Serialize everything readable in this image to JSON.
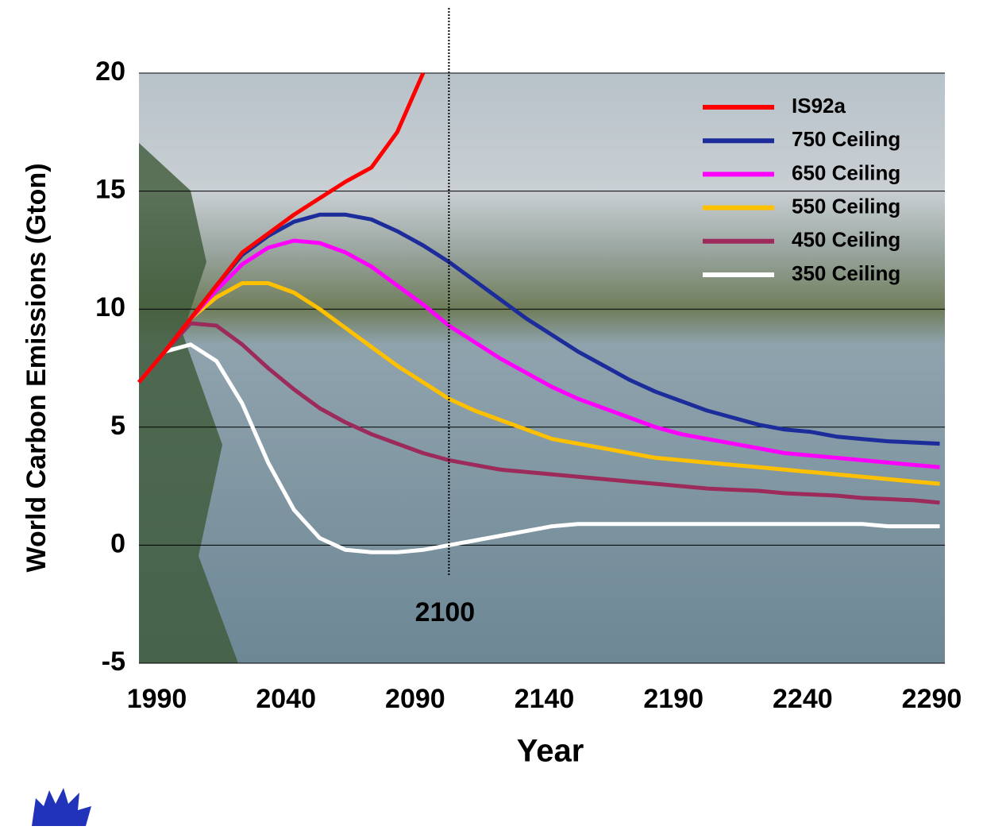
{
  "chart_data": {
    "type": "line",
    "y_label": "World Carbon Emissions (Gton)",
    "x_label": "Year",
    "vline": 2100,
    "xlim": [
      1980,
      2292
    ],
    "ylim": [
      -5,
      20
    ],
    "xticks": [
      1990,
      2040,
      2090,
      2140,
      2190,
      2240,
      2290
    ],
    "yticks": [
      -5,
      0,
      5,
      10,
      15,
      20
    ],
    "grid": true,
    "legend": "upper right",
    "x": [
      1980,
      1990,
      2000,
      2010,
      2020,
      2030,
      2040,
      2050,
      2060,
      2070,
      2080,
      2090,
      2100,
      2110,
      2120,
      2130,
      2140,
      2150,
      2160,
      2170,
      2180,
      2190,
      2200,
      2210,
      2220,
      2230,
      2240,
      2250,
      2260,
      2270,
      2280,
      2290
    ],
    "series": [
      {
        "name": "IS92a",
        "color": "#ff0000",
        "values": [
          6.9,
          8.2,
          9.6,
          11.0,
          12.4,
          13.2,
          14.0,
          14.7,
          15.4,
          16.0,
          17.5,
          20.0,
          null,
          null,
          null,
          null,
          null,
          null,
          null,
          null,
          null,
          null,
          null,
          null,
          null,
          null,
          null,
          null,
          null,
          null,
          null,
          null
        ]
      },
      {
        "name": "750 Ceiling",
        "color": "#1c2c9a",
        "values": [
          6.9,
          8.2,
          9.6,
          11.0,
          12.3,
          13.1,
          13.7,
          14.0,
          14.0,
          13.8,
          13.3,
          12.7,
          12.0,
          11.2,
          10.4,
          9.6,
          8.9,
          8.2,
          7.6,
          7.0,
          6.5,
          6.1,
          5.7,
          5.4,
          5.1,
          4.9,
          4.8,
          4.6,
          4.5,
          4.4,
          4.35,
          4.3
        ]
      },
      {
        "name": "650 Ceiling",
        "color": "#ff00ff",
        "values": [
          6.9,
          8.2,
          9.6,
          10.8,
          11.9,
          12.6,
          12.9,
          12.8,
          12.4,
          11.8,
          11.0,
          10.2,
          9.3,
          8.6,
          7.9,
          7.3,
          6.7,
          6.2,
          5.8,
          5.4,
          5.0,
          4.7,
          4.5,
          4.3,
          4.1,
          3.9,
          3.8,
          3.7,
          3.6,
          3.5,
          3.4,
          3.3
        ]
      },
      {
        "name": "550 Ceiling",
        "color": "#ffc000",
        "values": [
          6.9,
          8.2,
          9.6,
          10.5,
          11.1,
          11.1,
          10.7,
          10.0,
          9.2,
          8.4,
          7.6,
          6.9,
          6.2,
          5.7,
          5.3,
          4.9,
          4.5,
          4.3,
          4.1,
          3.9,
          3.7,
          3.6,
          3.5,
          3.4,
          3.3,
          3.2,
          3.1,
          3.0,
          2.9,
          2.8,
          2.7,
          2.6
        ]
      },
      {
        "name": "450 Ceiling",
        "color": "#9c2a5a",
        "values": [
          6.9,
          8.2,
          9.4,
          9.3,
          8.5,
          7.5,
          6.6,
          5.8,
          5.2,
          4.7,
          4.3,
          3.9,
          3.6,
          3.4,
          3.2,
          3.1,
          3.0,
          2.9,
          2.8,
          2.7,
          2.6,
          2.5,
          2.4,
          2.35,
          2.3,
          2.2,
          2.15,
          2.1,
          2.0,
          1.95,
          1.9,
          1.8
        ]
      },
      {
        "name": "350 Ceiling",
        "color": "#ffffff",
        "values": [
          6.9,
          8.2,
          8.5,
          7.8,
          6.0,
          3.5,
          1.5,
          0.3,
          -0.2,
          -0.3,
          -0.3,
          -0.2,
          0.0,
          0.2,
          0.4,
          0.6,
          0.8,
          0.9,
          0.9,
          0.9,
          0.9,
          0.9,
          0.9,
          0.9,
          0.9,
          0.9,
          0.9,
          0.9,
          0.9,
          0.8,
          0.8,
          0.8
        ]
      }
    ]
  }
}
